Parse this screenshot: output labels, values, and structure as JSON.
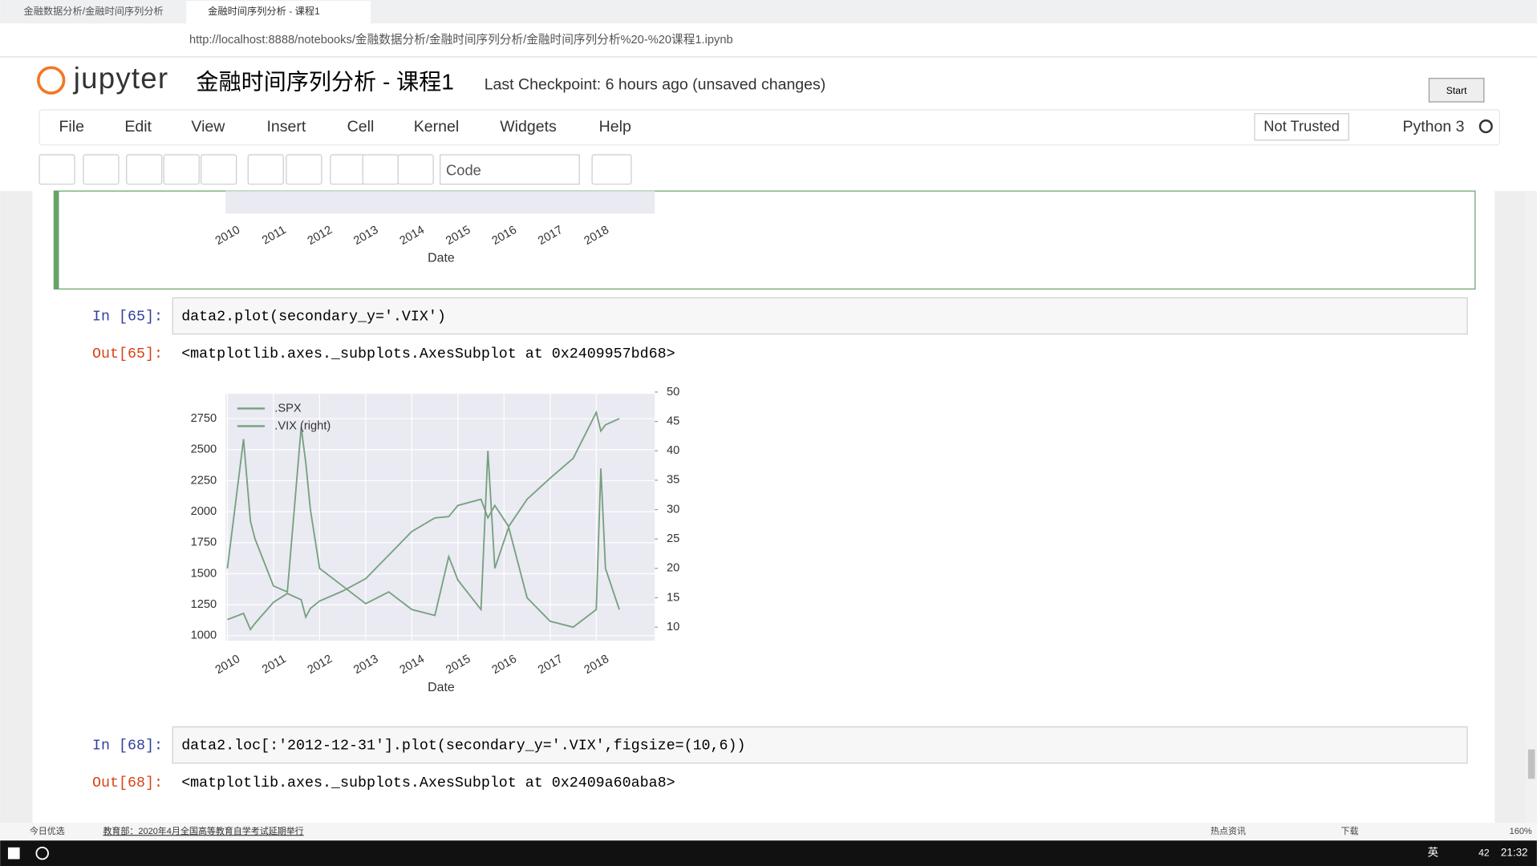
{
  "browser": {
    "tabs": [
      "金融数据分析/金融时间序列分析",
      "金融时间序列分析 - 课程1"
    ],
    "url": "http://localhost:8888/notebooks/金融数据分析/金融时间序列分析/金融时间序列分析%20-%20课程1.ipynb"
  },
  "header": {
    "logo": "jupyter",
    "title": "金融时间序列分析 - 课程1",
    "checkpoint": "Last Checkpoint: 6 hours ago (unsaved changes)",
    "start": "Start"
  },
  "menu": [
    "File",
    "Edit",
    "View",
    "Insert",
    "Cell",
    "Kernel",
    "Widgets",
    "Help"
  ],
  "trust": "Not Trusted",
  "kernel": "Python 3",
  "cell_type": "Code",
  "previous_output": {
    "xticks": [
      "2010",
      "2011",
      "2012",
      "2013",
      "2014",
      "2015",
      "2016",
      "2017",
      "2018"
    ],
    "xlabel": "Date"
  },
  "cells": [
    {
      "prompt": "In [65]:",
      "code": "data2.plot(secondary_y='.VIX')",
      "out_prompt": "Out[65]:",
      "output": "<matplotlib.axes._subplots.AxesSubplot at 0x2409957bd68>"
    },
    {
      "prompt": "In [68]:",
      "code": "data2.loc[:'2012-12-31'].plot(secondary_y='.VIX',figsize=(10,6))",
      "out_prompt": "Out[68]:",
      "output": "<matplotlib.axes._subplots.AxesSubplot at 0x2409a60aba8>"
    }
  ],
  "chart_data": {
    "type": "line",
    "xlabel": "Date",
    "legend": "upper left",
    "grid": true,
    "xlim": [
      2009.96,
      2019.27
    ],
    "xticks": [
      2010,
      2011,
      2012,
      2013,
      2014,
      2015,
      2016,
      2017,
      2018
    ],
    "ylim": [
      960,
      2950
    ],
    "yticks": [
      1000,
      1250,
      1500,
      1750,
      2000,
      2250,
      2500,
      2750
    ],
    "y2lim": [
      7.7,
      49.7
    ],
    "y2ticks": [
      10,
      15,
      20,
      25,
      30,
      35,
      40,
      45,
      50
    ],
    "x": [
      2010.0,
      2010.35,
      2010.5,
      2010.6,
      2011.0,
      2011.3,
      2011.6,
      2011.7,
      2011.8,
      2012.0,
      2012.5,
      2013.0,
      2013.5,
      2014.0,
      2014.5,
      2014.8,
      2015.0,
      2015.5,
      2015.65,
      2015.8,
      2016.1,
      2016.5,
      2017.0,
      2017.5,
      2018.0,
      2018.1,
      2018.2,
      2018.5
    ],
    "series": [
      {
        "name": ".SPX",
        "color": "#76a07f",
        "values": [
          1130,
          1180,
          1050,
          1100,
          1270,
          1340,
          1290,
          1150,
          1220,
          1280,
          1360,
          1460,
          1650,
          1840,
          1950,
          1960,
          2050,
          2100,
          1950,
          2050,
          1880,
          2100,
          2270,
          2430,
          2800,
          2650,
          2700,
          2750
        ]
      },
      {
        "name": ".VIX (right)",
        "color": "#76a07f",
        "axis": "y2",
        "values": [
          20,
          42,
          28,
          25,
          17,
          16,
          44,
          38,
          30,
          20,
          17,
          14,
          16,
          13,
          12,
          22,
          18,
          13,
          40,
          20,
          27,
          15,
          11,
          10,
          13,
          37,
          20,
          13
        ]
      }
    ]
  },
  "status_bar": {
    "left": "今日优选",
    "news": "教育部：2020年4月全国高等教育自学考试延期举行",
    "hot": "热点资讯",
    "download": "下载",
    "zoom": "160%"
  },
  "taskbar": {
    "ime": "英",
    "time": "21:32",
    "badge": "42"
  }
}
